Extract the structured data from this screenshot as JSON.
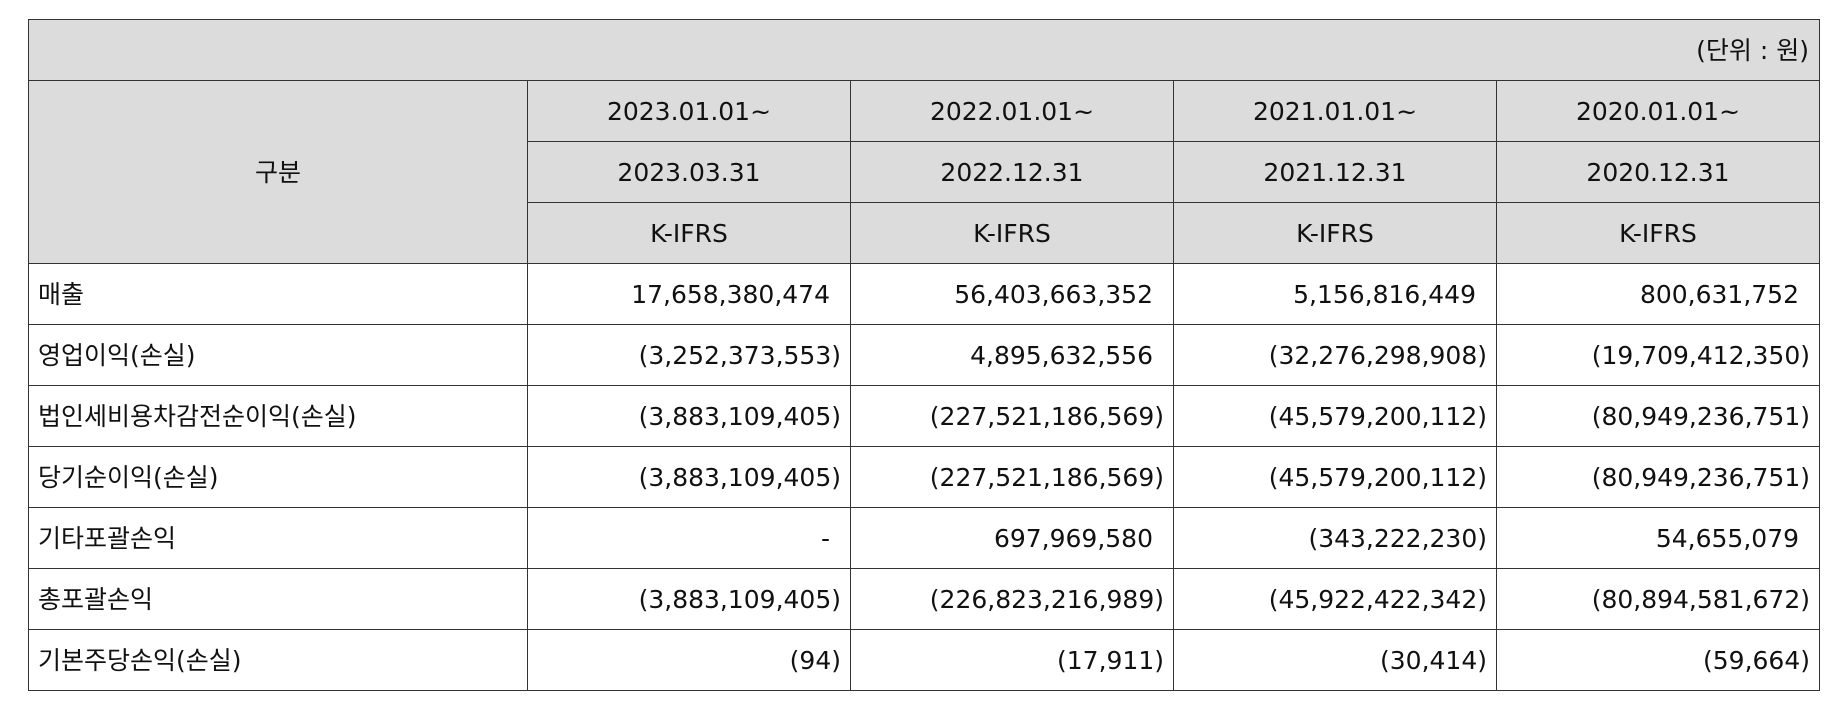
{
  "table": {
    "unit_note": "(단위 : 원)",
    "header": {
      "category_label": "구분",
      "period_start": [
        "2023.01.01~",
        "2022.01.01~",
        "2021.01.01~",
        "2020.01.01~"
      ],
      "period_end": [
        "2023.03.31",
        "2022.12.31",
        "2021.12.31",
        "2020.12.31"
      ],
      "standard": [
        "K-IFRS",
        "K-IFRS",
        "K-IFRS",
        "K-IFRS"
      ]
    },
    "rows": [
      {
        "label": "매출",
        "values": [
          "17,658,380,474",
          "56,403,663,352",
          "5,156,816,449",
          "800,631,752"
        ]
      },
      {
        "label": "영업이익(손실)",
        "values": [
          "(3,252,373,553)",
          "4,895,632,556",
          "(32,276,298,908)",
          "(19,709,412,350)"
        ]
      },
      {
        "label": "법인세비용차감전순이익(손실)",
        "values": [
          "(3,883,109,405)",
          "(227,521,186,569)",
          "(45,579,200,112)",
          "(80,949,236,751)"
        ]
      },
      {
        "label": "당기순이익(손실)",
        "values": [
          "(3,883,109,405)",
          "(227,521,186,569)",
          "(45,579,200,112)",
          "(80,949,236,751)"
        ]
      },
      {
        "label": "기타포괄손익",
        "values": [
          "-",
          "697,969,580",
          "(343,222,230)",
          "54,655,079"
        ]
      },
      {
        "label": "총포괄손익",
        "values": [
          "(3,883,109,405)",
          "(226,823,216,989)",
          "(45,922,422,342)",
          "(80,894,581,672)"
        ]
      },
      {
        "label": "기본주당손익(손실)",
        "values": [
          "(94)",
          "(17,911)",
          "(30,414)",
          "(59,664)"
        ]
      }
    ]
  }
}
